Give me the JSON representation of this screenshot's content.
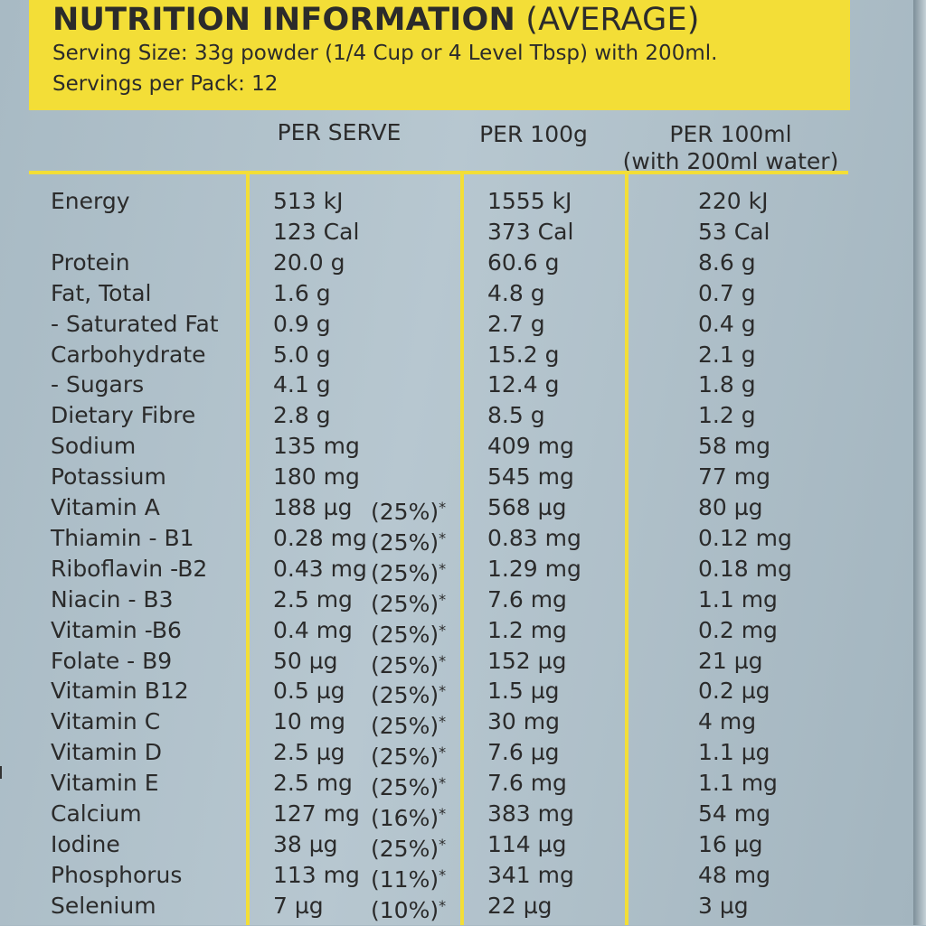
{
  "header": {
    "title_bold": "NUTRITION INFORMATION",
    "title_normal": "(AVERAGE)",
    "serving_size": "Serving Size: 33g powder (1/4 Cup or 4 Level Tbsp) with 200ml.",
    "servings_per_pack": "Servings per Pack: 12"
  },
  "columns": {
    "per_serve": "PER SERVE",
    "per_100g": "PER 100g",
    "per_100ml_line1": "PER 100ml",
    "per_100ml_line2": "(with 200ml water)"
  },
  "rows": [
    {
      "name": "Energy",
      "serve": "513 kJ",
      "pct": "",
      "ast": "",
      "g100": "1555 kJ",
      "ml100": "220 kJ"
    },
    {
      "name": "",
      "serve": "123 Cal",
      "pct": "",
      "ast": "",
      "g100": "373 Cal",
      "ml100": "53 Cal"
    },
    {
      "name": "Protein",
      "serve": "20.0 g",
      "pct": "",
      "ast": "",
      "g100": "60.6 g",
      "ml100": "8.6 g"
    },
    {
      "name": "Fat, Total",
      "serve": "1.6 g",
      "pct": "",
      "ast": "",
      "g100": "4.8 g",
      "ml100": "0.7 g"
    },
    {
      "name": " - Saturated Fat",
      "serve": "0.9 g",
      "pct": "",
      "ast": "",
      "g100": "2.7 g",
      "ml100": "0.4 g"
    },
    {
      "name": "Carbohydrate",
      "serve": "5.0 g",
      "pct": "",
      "ast": "",
      "g100": "15.2 g",
      "ml100": "2.1 g"
    },
    {
      "name": " - Sugars",
      "serve": "4.1 g",
      "pct": "",
      "ast": "",
      "g100": "12.4 g",
      "ml100": "1.8 g"
    },
    {
      "name": "Dietary Fibre",
      "serve": "2.8 g",
      "pct": "",
      "ast": "",
      "g100": "8.5 g",
      "ml100": "1.2 g"
    },
    {
      "name": "Sodium",
      "serve": "135 mg",
      "pct": "",
      "ast": "",
      "g100": "409 mg",
      "ml100": "58 mg"
    },
    {
      "name": "Potassium",
      "serve": "180 mg",
      "pct": "",
      "ast": "",
      "g100": "545 mg",
      "ml100": "77 mg"
    },
    {
      "name": "Vitamin A",
      "serve": "188 µg",
      "pct": "(25%)",
      "ast": "*",
      "g100": "568 µg",
      "ml100": "80 µg"
    },
    {
      "name": "Thiamin - B1",
      "serve": "0.28 mg",
      "pct": "(25%)",
      "ast": "*",
      "g100": "0.83 mg",
      "ml100": "0.12 mg"
    },
    {
      "name": "Riboflavin -B2",
      "serve": "0.43 mg",
      "pct": "(25%)",
      "ast": "*",
      "g100": "1.29 mg",
      "ml100": "0.18 mg"
    },
    {
      "name": "Niacin - B3",
      "serve": "2.5 mg",
      "pct": "(25%)",
      "ast": "*",
      "g100": "7.6 mg",
      "ml100": "1.1 mg"
    },
    {
      "name": "Vitamin -B6",
      "serve": "0.4 mg",
      "pct": "(25%)",
      "ast": "*",
      "g100": "1.2 mg",
      "ml100": "0.2 mg"
    },
    {
      "name": "Folate - B9",
      "serve": "50 µg",
      "pct": "(25%)",
      "ast": "*",
      "g100": "152 µg",
      "ml100": "21 µg"
    },
    {
      "name": "Vitamin B12",
      "serve": "0.5 µg",
      "pct": "(25%)",
      "ast": "*",
      "g100": "1.5 µg",
      "ml100": "0.2 µg"
    },
    {
      "name": "Vitamin C",
      "serve": "10 mg",
      "pct": "(25%)",
      "ast": "*",
      "g100": "30 mg",
      "ml100": "4 mg"
    },
    {
      "name": "Vitamin D",
      "serve": "2.5 µg",
      "pct": "(25%)",
      "ast": "*",
      "g100": "7.6 µg",
      "ml100": "1.1 µg"
    },
    {
      "name": "Vitamin E",
      "serve": "2.5 mg",
      "pct": "(25%)",
      "ast": "*",
      "g100": "7.6 mg",
      "ml100": "1.1 mg"
    },
    {
      "name": "Calcium",
      "serve": "127 mg",
      "pct": "(16%)",
      "ast": "*",
      "g100": "383 mg",
      "ml100": "54 mg"
    },
    {
      "name": "Iodine",
      "serve": "38 µg",
      "pct": "(25%)",
      "ast": "*",
      "g100": "114 µg",
      "ml100": "16 µg"
    },
    {
      "name": "Phosphorus",
      "serve": "113 mg",
      "pct": "(11%)",
      "ast": "*",
      "g100": "341 mg",
      "ml100": "48 mg"
    },
    {
      "name": "Selenium",
      "serve": "7 µg",
      "pct": "(10%)",
      "ast": "*",
      "g100": "22 µg",
      "ml100": "3 µg"
    }
  ]
}
